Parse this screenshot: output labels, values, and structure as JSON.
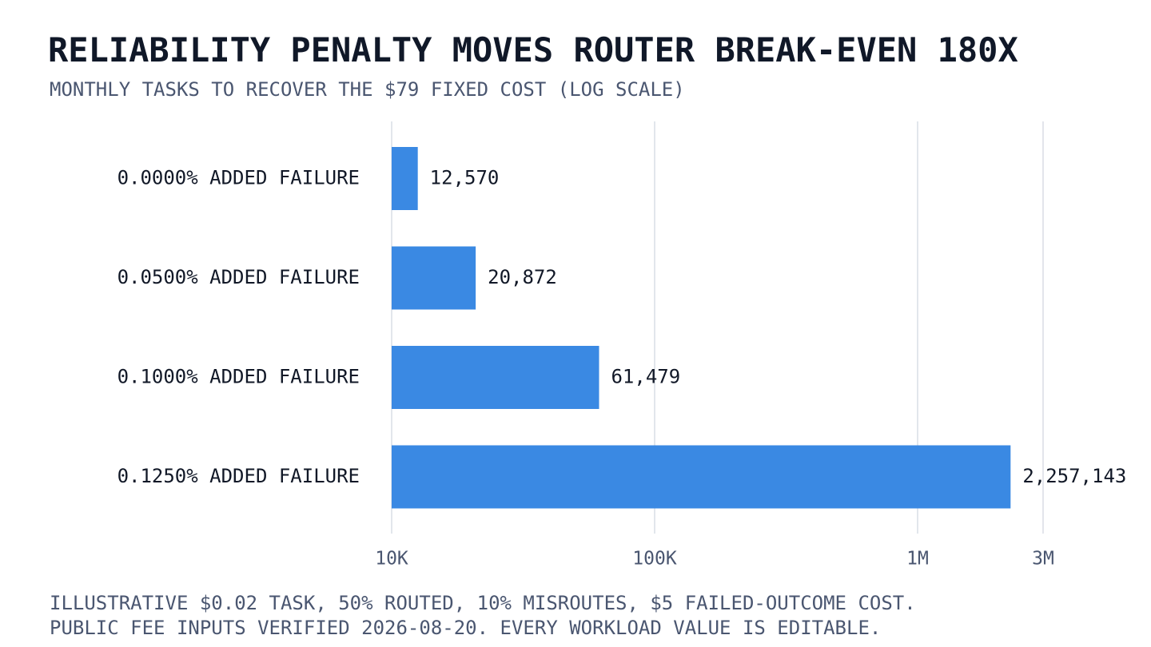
{
  "title": "RELIABILITY PENALTY MOVES ROUTER BREAK-EVEN 180X",
  "subtitle": "MONTHLY TASKS TO RECOVER THE $79 FIXED COST (LOG SCALE)",
  "footer": {
    "line1": "ILLUSTRATIVE $0.02 TASK, 50% ROUTED, 10% MISROUTES, $5 FAILED-OUTCOME COST.",
    "line2": "PUBLIC FEE INPUTS VERIFIED 2026-08-20. EVERY WORKLOAD VALUE IS EDITABLE."
  },
  "colors": {
    "bar": "#3a89e3",
    "grid": "#d9dde5",
    "text": "#111827",
    "muted": "#4a5670"
  },
  "chart_data": {
    "type": "bar",
    "orientation": "horizontal",
    "scale": "log",
    "categories": [
      "0.0000% ADDED FAILURE",
      "0.0500% ADDED FAILURE",
      "0.1000% ADDED FAILURE",
      "0.1250% ADDED FAILURE"
    ],
    "values": [
      12570,
      20872,
      61479,
      2257143
    ],
    "value_labels": [
      "12,570",
      "20,872",
      "61,479",
      "2,257,143"
    ],
    "xlim": [
      10000,
      3000000
    ],
    "ticks": [
      {
        "value": 10000,
        "label": "10K"
      },
      {
        "value": 100000,
        "label": "100K"
      },
      {
        "value": 1000000,
        "label": "1M"
      },
      {
        "value": 3000000,
        "label": "3M"
      }
    ],
    "grid": true
  }
}
